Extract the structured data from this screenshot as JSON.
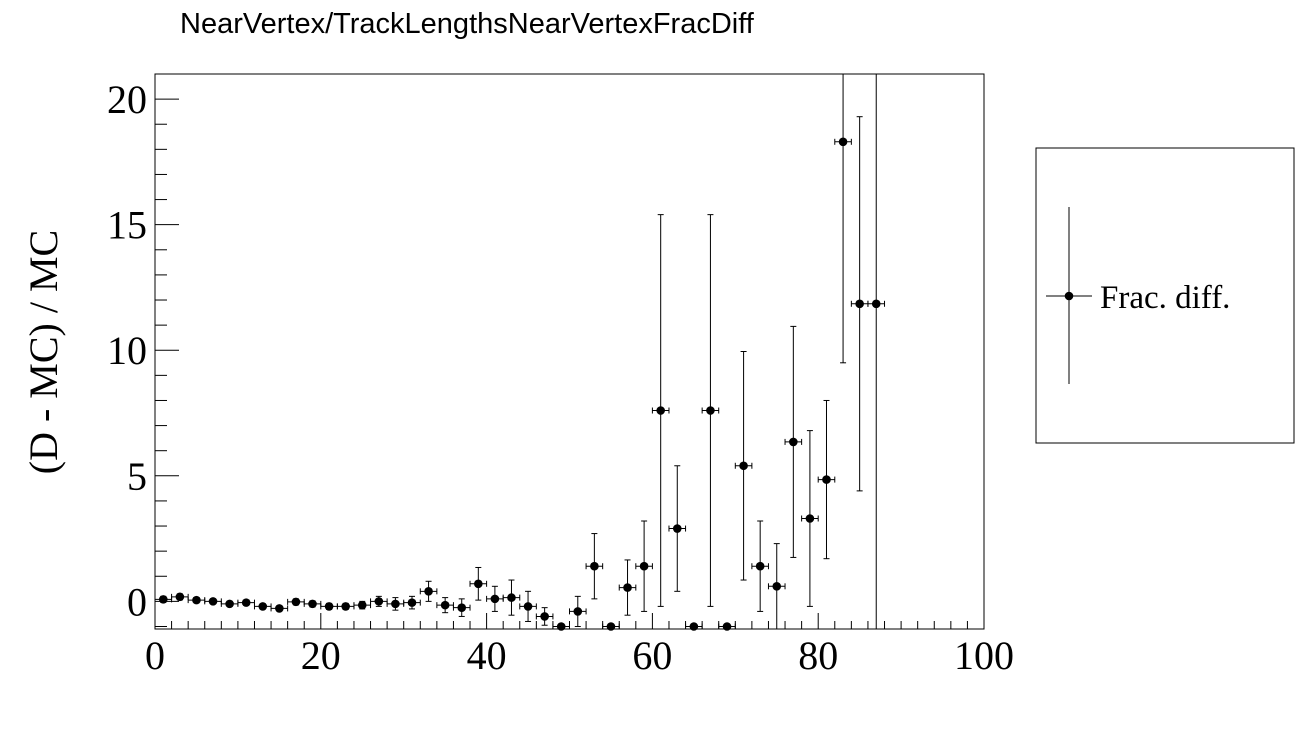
{
  "chart_data": {
    "type": "scatter",
    "title": "NearVertex/TrackLengthsNearVertexFracDiff",
    "xlabel": "",
    "ylabel": "(D - MC) / MC",
    "xlim": [
      0,
      100
    ],
    "ylim": [
      -1.1,
      21
    ],
    "xticks": [
      0,
      20,
      40,
      60,
      80,
      100
    ],
    "yticks": [
      0,
      5,
      10,
      15,
      20
    ],
    "x_tick_labels": [
      "0",
      "20",
      "40",
      "60",
      "80",
      "100"
    ],
    "y_tick_labels": [
      "0",
      "5",
      "10",
      "15",
      "20"
    ],
    "grid": false,
    "legend_position": "right",
    "series": [
      {
        "name": "Frac. diff.",
        "x_half_width": 1,
        "points": [
          {
            "x": 1,
            "y": 0.08,
            "err": 0.12
          },
          {
            "x": 3,
            "y": 0.18,
            "err": 0.12
          },
          {
            "x": 5,
            "y": 0.05,
            "err": 0.1
          },
          {
            "x": 7,
            "y": 0.0,
            "err": 0.1
          },
          {
            "x": 9,
            "y": -0.1,
            "err": 0.1
          },
          {
            "x": 11,
            "y": -0.05,
            "err": 0.1
          },
          {
            "x": 13,
            "y": -0.2,
            "err": 0.1
          },
          {
            "x": 15,
            "y": -0.28,
            "err": 0.1
          },
          {
            "x": 17,
            "y": -0.02,
            "err": 0.12
          },
          {
            "x": 19,
            "y": -0.1,
            "err": 0.12
          },
          {
            "x": 21,
            "y": -0.2,
            "err": 0.12
          },
          {
            "x": 23,
            "y": -0.2,
            "err": 0.12
          },
          {
            "x": 25,
            "y": -0.15,
            "err": 0.15
          },
          {
            "x": 27,
            "y": 0.0,
            "err": 0.2
          },
          {
            "x": 29,
            "y": -0.1,
            "err": 0.25
          },
          {
            "x": 31,
            "y": -0.05,
            "err": 0.25
          },
          {
            "x": 33,
            "y": 0.4,
            "err": 0.4
          },
          {
            "x": 35,
            "y": -0.15,
            "err": 0.3
          },
          {
            "x": 37,
            "y": -0.25,
            "err": 0.35
          },
          {
            "x": 39,
            "y": 0.7,
            "err": 0.65
          },
          {
            "x": 41,
            "y": 0.1,
            "err": 0.5
          },
          {
            "x": 43,
            "y": 0.15,
            "err": 0.7
          },
          {
            "x": 45,
            "y": -0.2,
            "err": 0.6
          },
          {
            "x": 47,
            "y": -0.6,
            "err": 0.35
          },
          {
            "x": 49,
            "y": -1.0,
            "err": 0.1
          },
          {
            "x": 51,
            "y": -0.4,
            "err": 0.6
          },
          {
            "x": 53,
            "y": 1.4,
            "err": 1.3
          },
          {
            "x": 55,
            "y": -1.0,
            "err": 0.1
          },
          {
            "x": 57,
            "y": 0.55,
            "err": 1.1
          },
          {
            "x": 59,
            "y": 1.4,
            "err": 1.8
          },
          {
            "x": 61,
            "y": 7.6,
            "err": 7.8
          },
          {
            "x": 63,
            "y": 2.9,
            "err": 2.5
          },
          {
            "x": 65,
            "y": -1.0,
            "err": 0.1
          },
          {
            "x": 67,
            "y": 7.6,
            "err": 7.8
          },
          {
            "x": 69,
            "y": -1.0,
            "err": 0.1
          },
          {
            "x": 71,
            "y": 5.4,
            "err": 4.55
          },
          {
            "x": 73,
            "y": 1.4,
            "err": 1.8
          },
          {
            "x": 75,
            "y": 0.6,
            "err": 1.7
          },
          {
            "x": 77,
            "y": 6.35,
            "err": 4.6
          },
          {
            "x": 79,
            "y": 3.3,
            "err": 3.5
          },
          {
            "x": 81,
            "y": 4.85,
            "err": 3.15
          },
          {
            "x": 83,
            "y": 18.3,
            "err": 8.8
          },
          {
            "x": 85,
            "y": 11.85,
            "err": 7.45
          },
          {
            "x": 87,
            "y": 11.85,
            "err": 13.0
          }
        ]
      }
    ]
  }
}
